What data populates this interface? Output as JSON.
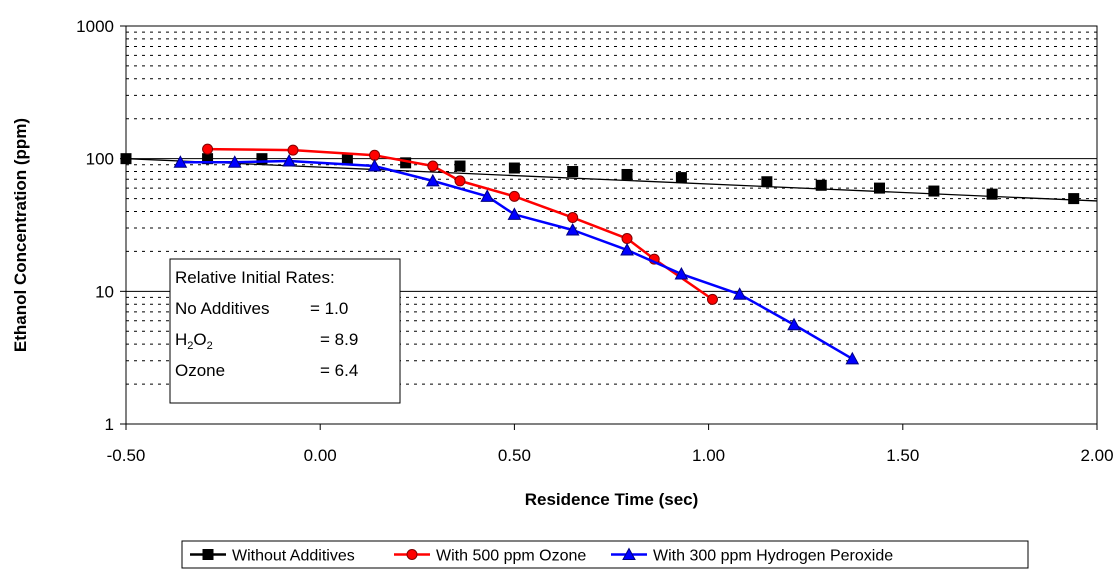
{
  "chart_data": {
    "type": "line",
    "xlabel": "Residence Time (sec)",
    "ylabel": "Ethanol Concentration (ppm)",
    "xlim": [
      -0.5,
      2.0
    ],
    "ylim": [
      1,
      1000
    ],
    "y_scale": "log",
    "x_ticks": [
      "-0.50",
      "0.00",
      "0.50",
      "1.00",
      "1.50",
      "2.00"
    ],
    "y_ticks": [
      "1",
      "10",
      "100",
      "1000"
    ],
    "grid": "horizontal major solid, minor dotted",
    "legend_position": "bottom",
    "series": [
      {
        "name": "Without Additives",
        "color": "#000000",
        "marker": "square",
        "x": [
          -0.5,
          -0.29,
          -0.15,
          0.07,
          0.22,
          0.36,
          0.5,
          0.65,
          0.79,
          0.93,
          1.15,
          1.29,
          1.44,
          1.58,
          1.73,
          1.94
        ],
        "y": [
          100,
          100,
          100,
          98,
          93,
          88,
          85,
          80,
          76,
          72,
          67,
          63,
          60,
          57,
          54,
          50
        ],
        "trend_line": {
          "x": [
            -0.5,
            2.0
          ],
          "y": [
            100,
            48
          ]
        }
      },
      {
        "name": "With  500 ppm Ozone",
        "color": "#ff0000",
        "marker": "circle",
        "x": [
          -0.29,
          -0.07,
          0.14,
          0.29,
          0.36,
          0.5,
          0.65,
          0.79,
          0.86,
          1.01
        ],
        "y": [
          118,
          116,
          106,
          88,
          68,
          52,
          36,
          25,
          17.5,
          8.7
        ]
      },
      {
        "name": "With  300 ppm Hydrogen Peroxide",
        "color": "#0000ff",
        "marker": "triangle",
        "x": [
          -0.36,
          -0.22,
          -0.08,
          0.14,
          0.29,
          0.43,
          0.5,
          0.65,
          0.79,
          0.93,
          1.08,
          1.22,
          1.37
        ],
        "y": [
          94,
          94,
          96,
          88,
          68,
          52,
          38,
          29,
          20.5,
          13.5,
          9.5,
          5.6,
          3.1
        ]
      }
    ],
    "annotation": {
      "lines": [
        {
          "label": "Relative Initial Rates:",
          "sub": "",
          "value": ""
        },
        {
          "label": "No Additives",
          "sub": "",
          "value": "= 1.0"
        },
        {
          "label": "H",
          "sub": "2",
          "label2": "O",
          "sub2": "2",
          "value": "= 8.9"
        },
        {
          "label": "Ozone",
          "sub": "",
          "value": "= 6.4"
        }
      ]
    }
  }
}
